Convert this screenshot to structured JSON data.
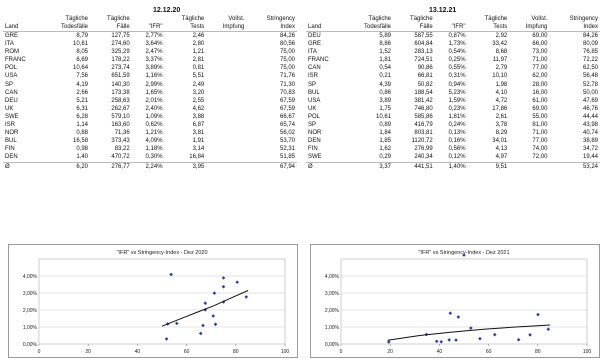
{
  "tables": [
    {
      "date": "12.12.20",
      "headers": [
        [
          "",
          "Land"
        ],
        [
          "Tägliche",
          "Todesfälle"
        ],
        [
          "Tägliche",
          "Fälle"
        ],
        [
          "",
          "\"IFR\""
        ],
        [
          "Tägliche",
          "Tests"
        ],
        [
          "Vollst.",
          "Impfung"
        ],
        [
          "Stringency",
          "Index"
        ]
      ],
      "rows": [
        [
          "GRE",
          "8,79",
          "127,75",
          "2,77%",
          "2,46",
          "",
          "84,26"
        ],
        [
          "ITA",
          "10,61",
          "274,60",
          "3,64%",
          "2,80",
          "",
          "80,56"
        ],
        [
          "ROM",
          "8,05",
          "325,29",
          "2,47%",
          "1,21",
          "",
          "75,00"
        ],
        [
          "FRANC",
          "6,69",
          "178,22",
          "3,37%",
          "2,81",
          "",
          "75,00"
        ],
        [
          "POL",
          "10,64",
          "273,74",
          "3,89%",
          "0,81",
          "",
          "75,00"
        ],
        [
          "USA",
          "7,56",
          "651,59",
          "1,16%",
          "5,51",
          "",
          "71,76"
        ],
        [
          "SP",
          "4,19",
          "140,30",
          "2,99%",
          "2,49",
          "",
          "71,30"
        ],
        [
          "CAN",
          "2,66",
          "173,38",
          "1,65%",
          "3,20",
          "",
          "70,83"
        ],
        [
          "DEU",
          "5,21",
          "258,63",
          "2,01%",
          "2,55",
          "",
          "67,59"
        ],
        [
          "UK",
          "6,31",
          "262,67",
          "2,40%",
          "4,62",
          "",
          "67,59"
        ],
        [
          "SWE",
          "6,28",
          "579,10",
          "1,09%",
          "3,88",
          "",
          "66,67"
        ],
        [
          "ISR",
          "1,14",
          "163,60",
          "0,62%",
          "6,87",
          "",
          "65,74"
        ],
        [
          "NOR",
          "0,88",
          "71,36",
          "1,21%",
          "3,81",
          "",
          "56,02"
        ],
        [
          "BUL",
          "16,58",
          "373,43",
          "4,09%",
          "1,91",
          "",
          "53,70"
        ],
        [
          "FIN",
          "0,98",
          "83,22",
          "1,18%",
          "3,14",
          "",
          "52,31"
        ],
        [
          "DEN",
          "1,40",
          "470,72",
          "0,30%",
          "16,84",
          "",
          "51,85"
        ],
        [
          "Ø",
          "6,20",
          "276,77",
          "2,24%",
          "3,95",
          "",
          "67,94"
        ]
      ]
    },
    {
      "date": "13.12.21",
      "headers": [
        [
          "",
          "Land"
        ],
        [
          "Tägliche",
          "Todesfälle"
        ],
        [
          "Tägliche",
          "Fälle"
        ],
        [
          "",
          "\"IFR\""
        ],
        [
          "Tägliche",
          "Tests"
        ],
        [
          "Vollst.",
          "Impfung"
        ],
        [
          "Stringency",
          "Index"
        ]
      ],
      "rows": [
        [
          "DEU",
          "5,89",
          "587,55",
          "0,87%",
          "2,92",
          "69,00",
          "84,26"
        ],
        [
          "GRE",
          "8,86",
          "604,84",
          "1,73%",
          "33,42",
          "66,00",
          "80,09"
        ],
        [
          "ITA",
          "1,52",
          "283,13",
          "0,54%",
          "8,68",
          "73,00",
          "76,85"
        ],
        [
          "FRANC",
          "1,81",
          "724,51",
          "0,25%",
          "11,97",
          "71,00",
          "72,22"
        ],
        [
          "CAN",
          "0,54",
          "90,86",
          "0,55%",
          "2,79",
          "77,00",
          "62,50"
        ],
        [
          "ISR",
          "0,21",
          "66,81",
          "0,31%",
          "10,10",
          "62,00",
          "56,48"
        ],
        [
          "SP",
          "4,39",
          "50,82",
          "0,94%",
          "1,98",
          "28,00",
          "52,78"
        ],
        [
          "BUL",
          "0,86",
          "188,54",
          "5,23%",
          "4,10",
          "16,00",
          "50,00"
        ],
        [
          "USA",
          "3,89",
          "381,42",
          "1,59%",
          "4,72",
          "61,00",
          "47,69"
        ],
        [
          "UK",
          "1,75",
          "746,80",
          "0,23%",
          "17,86",
          "69,00",
          "46,76"
        ],
        [
          "POL",
          "10,61",
          "585,86",
          "1,81%",
          "2,61",
          "55,00",
          "44,44"
        ],
        [
          "SP",
          "0,89",
          "416,79",
          "0,24%",
          "3,78",
          "81,00",
          "43,98"
        ],
        [
          "NOR",
          "1,84",
          "803,81",
          "0,13%",
          "8,29",
          "71,00",
          "40,74"
        ],
        [
          "DEN",
          "1,85",
          "1120,72",
          "0,16%",
          "34,01",
          "77,00",
          "38,89"
        ],
        [
          "FIN",
          "1,62",
          "276,99",
          "0,56%",
          "4,13",
          "74,00",
          "34,72"
        ],
        [
          "SWE",
          "0,29",
          "240,34",
          "0,12%",
          "4,97",
          "72,00",
          "19,44"
        ],
        [
          "Ø",
          "3,37",
          "441,51",
          "1,40%",
          "9,51",
          "",
          "53,24"
        ]
      ]
    }
  ],
  "chart_data": [
    {
      "type": "scatter",
      "title": "\"IFR\" vs Stringency-Index - Dez 2020",
      "xlim": [
        0,
        100
      ],
      "ylim": [
        0,
        5
      ],
      "xticks": [
        0,
        20,
        40,
        60,
        80,
        100
      ],
      "yticks": [
        0,
        1,
        2,
        3,
        4
      ],
      "ytick_labels": [
        "0,00%",
        "1,00%",
        "2,00%",
        "3,00%",
        "4,00%"
      ],
      "grid": "horizontal",
      "trendline": "logarithmic",
      "points": [
        {
          "x": 84.26,
          "y": 2.77
        },
        {
          "x": 80.56,
          "y": 3.64
        },
        {
          "x": 75.0,
          "y": 2.47
        },
        {
          "x": 75.0,
          "y": 3.37
        },
        {
          "x": 75.0,
          "y": 3.89
        },
        {
          "x": 71.76,
          "y": 1.16
        },
        {
          "x": 71.3,
          "y": 2.99
        },
        {
          "x": 70.83,
          "y": 1.65
        },
        {
          "x": 67.59,
          "y": 2.01
        },
        {
          "x": 67.59,
          "y": 2.4
        },
        {
          "x": 66.67,
          "y": 1.09
        },
        {
          "x": 65.74,
          "y": 0.62
        },
        {
          "x": 56.02,
          "y": 1.21
        },
        {
          "x": 53.7,
          "y": 4.09
        },
        {
          "x": 52.31,
          "y": 1.18
        },
        {
          "x": 51.85,
          "y": 0.3
        }
      ],
      "trend": [
        {
          "x": 50,
          "y": 1.05
        },
        {
          "x": 57,
          "y": 1.45
        },
        {
          "x": 64,
          "y": 1.85
        },
        {
          "x": 71,
          "y": 2.25
        },
        {
          "x": 78,
          "y": 2.7
        },
        {
          "x": 85,
          "y": 3.15
        }
      ],
      "color": "#2e3f9e",
      "trend_color": "#111111"
    },
    {
      "type": "scatter",
      "title": "\"IFR\" vs Stringency-Index - Dez 2021",
      "xlim": [
        0,
        100
      ],
      "ylim": [
        0,
        5
      ],
      "xticks": [
        0,
        20,
        40,
        60,
        80,
        100
      ],
      "yticks": [
        0,
        1,
        2,
        3,
        4
      ],
      "ytick_labels": [
        "0,00%",
        "1,00%",
        "2,00%",
        "3,00%",
        "4,00%"
      ],
      "grid": "horizontal",
      "trendline": "logarithmic",
      "points": [
        {
          "x": 84.26,
          "y": 0.87
        },
        {
          "x": 80.09,
          "y": 1.73
        },
        {
          "x": 76.85,
          "y": 0.54
        },
        {
          "x": 72.22,
          "y": 0.25
        },
        {
          "x": 62.5,
          "y": 0.55
        },
        {
          "x": 56.48,
          "y": 0.31
        },
        {
          "x": 52.78,
          "y": 0.94
        },
        {
          "x": 50.0,
          "y": 5.23
        },
        {
          "x": 47.69,
          "y": 1.59
        },
        {
          "x": 46.76,
          "y": 0.23
        },
        {
          "x": 44.44,
          "y": 1.81
        },
        {
          "x": 43.98,
          "y": 0.24
        },
        {
          "x": 40.74,
          "y": 0.13
        },
        {
          "x": 38.89,
          "y": 0.16
        },
        {
          "x": 34.72,
          "y": 0.56
        },
        {
          "x": 19.44,
          "y": 0.12
        }
      ],
      "trend": [
        {
          "x": 19,
          "y": 0.22
        },
        {
          "x": 32,
          "y": 0.5
        },
        {
          "x": 45,
          "y": 0.7
        },
        {
          "x": 58,
          "y": 0.87
        },
        {
          "x": 71,
          "y": 1.0
        },
        {
          "x": 85,
          "y": 1.12
        }
      ],
      "color": "#2e3f9e",
      "trend_color": "#111111"
    }
  ]
}
